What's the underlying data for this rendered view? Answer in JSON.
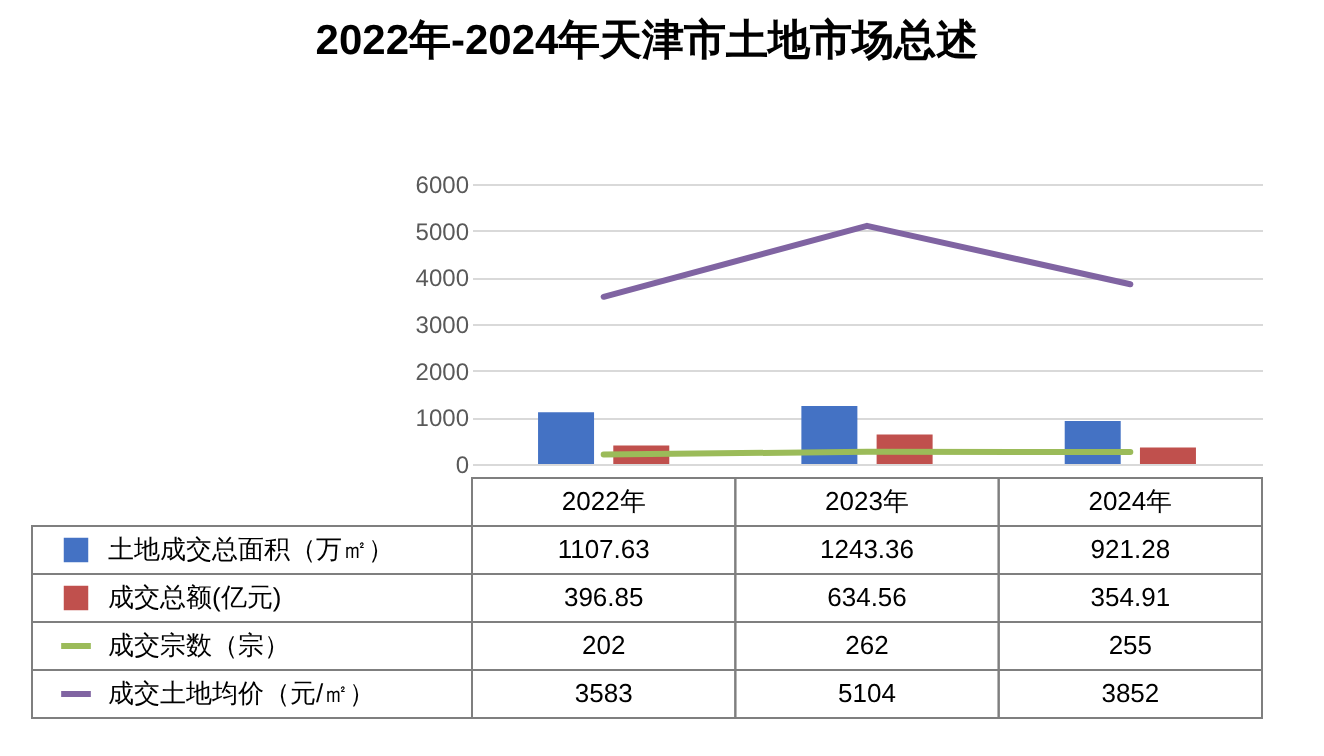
{
  "chart_data": {
    "type": "bar",
    "title": "2022年-2024年天津市土地市场总述",
    "categories": [
      "2022年",
      "2023年",
      "2024年"
    ],
    "series": [
      {
        "name": "土地成交总面积（万㎡）",
        "color": "#4472c4",
        "values": [
          1107.63,
          1243.36,
          921.28
        ]
      },
      {
        "name": "成交总额(亿元)",
        "color": "#c0504d",
        "values": [
          396.85,
          634.56,
          354.91
        ]
      },
      {
        "name": "成交宗数（宗）",
        "type": "line",
        "color": "#9bbb59",
        "values": [
          202,
          262,
          255
        ]
      },
      {
        "name": "成交土地均价（元/㎡）",
        "type": "line",
        "color": "#8064a2",
        "values": [
          3583,
          5104,
          3852
        ]
      }
    ],
    "ylim": [
      0,
      6000
    ],
    "yticks": [
      0,
      1000,
      2000,
      3000,
      4000,
      5000,
      6000
    ],
    "grid": "y",
    "legend": "bottom",
    "data_labels": true,
    "marker": "none",
    "line_style": "solid"
  }
}
